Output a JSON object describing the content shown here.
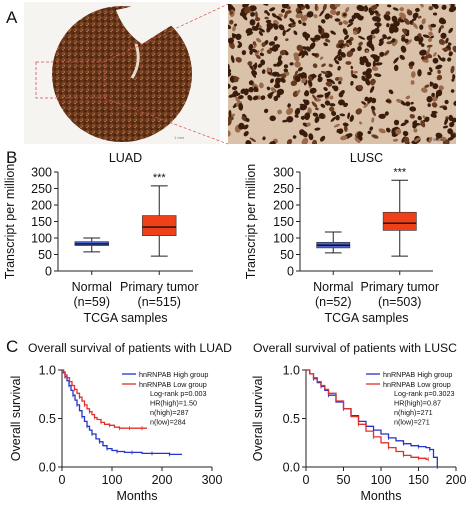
{
  "panels": {
    "a": "A",
    "b": "B",
    "c": "C"
  },
  "colors": {
    "normal_box": "#4a64d8",
    "tumor_box": "#f0401a",
    "high_line": "#2733c9",
    "low_line": "#e0302a",
    "tissue_brown": "#7a4424",
    "zoom_line": "#d85050"
  },
  "panel_a": {
    "images": [
      "tissue-core-photo",
      "magnified-tissue-photo"
    ]
  },
  "chart_data": [
    {
      "type": "box",
      "title": "LUAD",
      "ylabel": "Transcript per million",
      "xlabel": "TCGA samples",
      "ylim": [
        0,
        300
      ],
      "yticks": [
        0,
        50,
        100,
        150,
        200,
        250,
        300
      ],
      "categories": [
        {
          "label": "Normal",
          "n_label": "(n=59)",
          "whisker_low": 58,
          "q1": 77,
          "median": 82,
          "q3": 89,
          "whisker_high": 100,
          "color": "#4a64d8"
        },
        {
          "label": "Primary tumor",
          "n_label": "(n=515)",
          "whisker_low": 45,
          "q1": 107,
          "median": 133,
          "q3": 168,
          "whisker_high": 258,
          "color": "#f0401a"
        }
      ],
      "significance": "***"
    },
    {
      "type": "box",
      "title": "LUSC",
      "ylabel": "Transcript per million",
      "xlabel": "TCGA samples",
      "ylim": [
        0,
        300
      ],
      "yticks": [
        0,
        50,
        100,
        150,
        200,
        250,
        300
      ],
      "categories": [
        {
          "label": "Normal",
          "n_label": "(n=52)",
          "whisker_low": 55,
          "q1": 70,
          "median": 78,
          "q3": 87,
          "whisker_high": 118,
          "color": "#4a64d8"
        },
        {
          "label": "Primary tumor",
          "n_label": "(n=503)",
          "whisker_low": 45,
          "q1": 123,
          "median": 145,
          "q3": 178,
          "whisker_high": 275,
          "color": "#f0401a"
        }
      ],
      "significance": "***"
    },
    {
      "type": "line",
      "title": "Overall survival of patients with LUAD",
      "ylabel": "Overall survival",
      "xlabel": "Months",
      "xlim": [
        0,
        300
      ],
      "ylim": [
        0,
        1
      ],
      "xticks": [
        0,
        100,
        200,
        300
      ],
      "yticks": [
        "0.0",
        "0.5",
        "1.0"
      ],
      "legend": [
        "hnRNPAB High group",
        "hnRNPAB Low group"
      ],
      "stats": [
        "Log-rank p=0.003",
        "HR(high)=1.50",
        "n(high)=287",
        "n(low)=284"
      ],
      "series": [
        {
          "name": "hnRNPAB High group",
          "color": "#2733c9",
          "x": [
            0,
            3,
            6,
            10,
            14,
            18,
            22,
            26,
            30,
            35,
            40,
            45,
            50,
            55,
            60,
            68,
            75,
            82,
            90,
            100,
            110,
            125,
            140,
            160,
            180,
            200,
            215,
            240
          ],
          "y": [
            1.0,
            0.97,
            0.93,
            0.89,
            0.84,
            0.79,
            0.74,
            0.69,
            0.64,
            0.58,
            0.52,
            0.47,
            0.42,
            0.38,
            0.34,
            0.29,
            0.26,
            0.22,
            0.19,
            0.17,
            0.16,
            0.15,
            0.15,
            0.14,
            0.14,
            0.14,
            0.13,
            0.13
          ]
        },
        {
          "name": "hnRNPAB Low group",
          "color": "#e0302a",
          "x": [
            0,
            3,
            6,
            10,
            15,
            20,
            25,
            30,
            35,
            40,
            45,
            50,
            55,
            60,
            65,
            70,
            78,
            85,
            95,
            105,
            115,
            125,
            135,
            150,
            160,
            170
          ],
          "y": [
            1.0,
            0.98,
            0.95,
            0.92,
            0.88,
            0.84,
            0.8,
            0.76,
            0.72,
            0.68,
            0.64,
            0.6,
            0.57,
            0.54,
            0.51,
            0.49,
            0.46,
            0.44,
            0.43,
            0.41,
            0.4,
            0.4,
            0.4,
            0.4,
            0.4,
            0.4
          ]
        }
      ]
    },
    {
      "type": "line",
      "title": "Overall survival of patients with LUSC",
      "ylabel": "Overall survival",
      "xlabel": "Months",
      "xlim": [
        0,
        200
      ],
      "ylim": [
        0,
        1
      ],
      "xticks": [
        0,
        50,
        100,
        150,
        200
      ],
      "yticks": [
        "0.0",
        "0.5",
        "1.0"
      ],
      "legend": [
        "hnRNPAB High group",
        "hnRNPAB Low group"
      ],
      "stats": [
        "Log-rank p=0.3023",
        "HR(high)=0.87",
        "n(high)=271",
        "n(low)=271"
      ],
      "series": [
        {
          "name": "hnRNPAB High group",
          "color": "#2733c9",
          "x": [
            0,
            5,
            10,
            15,
            20,
            25,
            30,
            40,
            50,
            60,
            70,
            80,
            90,
            100,
            110,
            120,
            130,
            140,
            150,
            160,
            165,
            170,
            175
          ],
          "y": [
            1.0,
            0.96,
            0.91,
            0.87,
            0.83,
            0.79,
            0.74,
            0.67,
            0.6,
            0.53,
            0.47,
            0.42,
            0.38,
            0.34,
            0.3,
            0.27,
            0.24,
            0.22,
            0.21,
            0.2,
            0.18,
            0.1,
            0.0
          ]
        },
        {
          "name": "hnRNPAB Low group",
          "color": "#e0302a",
          "x": [
            0,
            5,
            10,
            15,
            20,
            25,
            30,
            40,
            50,
            60,
            70,
            80,
            90,
            100,
            110,
            120,
            130,
            140,
            150,
            160,
            163
          ],
          "y": [
            1.0,
            0.96,
            0.92,
            0.88,
            0.84,
            0.8,
            0.76,
            0.68,
            0.6,
            0.52,
            0.44,
            0.37,
            0.31,
            0.25,
            0.2,
            0.16,
            0.12,
            0.1,
            0.09,
            0.08,
            0.08
          ]
        }
      ]
    }
  ]
}
